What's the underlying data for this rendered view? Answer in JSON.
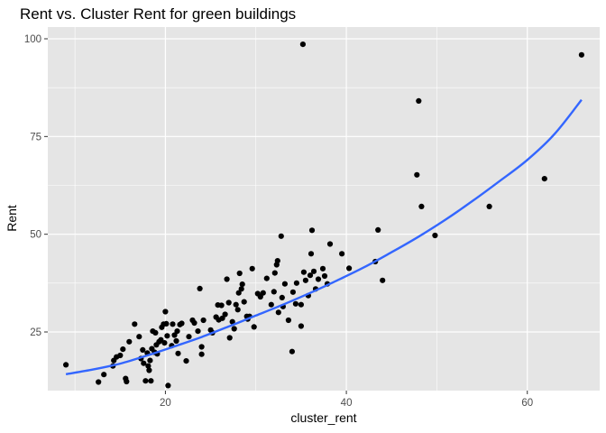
{
  "chart_data": {
    "type": "scatter",
    "title": "Rent vs. Cluster Rent for green buildings",
    "xlabel": "cluster_rent",
    "ylabel": "Rent",
    "xlim": [
      7,
      68
    ],
    "ylim": [
      10,
      103
    ],
    "x_ticks": [
      20,
      40,
      60
    ],
    "x_minor_ticks": [
      10,
      30,
      50
    ],
    "y_ticks": [
      25,
      50,
      75,
      100
    ],
    "y_minor_ticks": [
      37.5,
      62.5,
      87.5
    ],
    "x_tick_labels": [
      "20",
      "40",
      "60"
    ],
    "y_tick_labels": [
      "25",
      "50",
      "75",
      "100"
    ],
    "grid": true,
    "legend": "none",
    "panel_background": "#e5e5e5",
    "grid_color": "#ffffff",
    "point_color": "#000000",
    "trend_color": "#3366ff",
    "points": [
      [
        9.0,
        16.6
      ],
      [
        12.6,
        12.2
      ],
      [
        13.2,
        14.1
      ],
      [
        14.2,
        16.3
      ],
      [
        14.3,
        17.7
      ],
      [
        14.6,
        18.6
      ],
      [
        15.0,
        19.0
      ],
      [
        15.3,
        20.6
      ],
      [
        15.6,
        13.1
      ],
      [
        15.7,
        12.3
      ],
      [
        16.0,
        22.5
      ],
      [
        16.6,
        27.0
      ],
      [
        17.1,
        23.8
      ],
      [
        17.3,
        18.2
      ],
      [
        17.5,
        20.4
      ],
      [
        17.6,
        17.0
      ],
      [
        17.8,
        12.5
      ],
      [
        18.0,
        19.6
      ],
      [
        18.1,
        16.3
      ],
      [
        18.2,
        15.2
      ],
      [
        18.3,
        17.7
      ],
      [
        18.4,
        12.5
      ],
      [
        18.5,
        20.7
      ],
      [
        18.6,
        25.2
      ],
      [
        18.8,
        19.8
      ],
      [
        18.9,
        24.8
      ],
      [
        19.0,
        21.7
      ],
      [
        19.1,
        19.4
      ],
      [
        19.3,
        22.5
      ],
      [
        19.5,
        23.0
      ],
      [
        19.6,
        26.2
      ],
      [
        19.8,
        27.0
      ],
      [
        19.9,
        22.2
      ],
      [
        20.0,
        30.2
      ],
      [
        20.1,
        27.1
      ],
      [
        20.2,
        24.0
      ],
      [
        20.3,
        11.3
      ],
      [
        20.7,
        21.5
      ],
      [
        20.8,
        27.0
      ],
      [
        21.0,
        24.2
      ],
      [
        21.2,
        22.7
      ],
      [
        21.3,
        25.2
      ],
      [
        21.4,
        19.5
      ],
      [
        21.6,
        26.9
      ],
      [
        21.8,
        27.2
      ],
      [
        22.3,
        17.6
      ],
      [
        22.6,
        23.8
      ],
      [
        23.0,
        28.0
      ],
      [
        23.2,
        27.3
      ],
      [
        23.6,
        25.2
      ],
      [
        23.8,
        36.1
      ],
      [
        24.0,
        21.2
      ],
      [
        24.0,
        19.3
      ],
      [
        24.2,
        28.0
      ],
      [
        25.0,
        25.5
      ],
      [
        25.2,
        24.8
      ],
      [
        25.6,
        28.8
      ],
      [
        25.8,
        31.9
      ],
      [
        25.9,
        28.1
      ],
      [
        26.2,
        31.8
      ],
      [
        26.3,
        28.5
      ],
      [
        26.6,
        29.5
      ],
      [
        26.8,
        38.5
      ],
      [
        27.0,
        32.5
      ],
      [
        27.1,
        23.5
      ],
      [
        27.4,
        27.6
      ],
      [
        27.6,
        25.8
      ],
      [
        27.8,
        32.0
      ],
      [
        28.0,
        30.7
      ],
      [
        28.1,
        35.0
      ],
      [
        28.2,
        40.0
      ],
      [
        28.4,
        36.0
      ],
      [
        28.5,
        37.2
      ],
      [
        28.7,
        32.7
      ],
      [
        29.0,
        29.0
      ],
      [
        29.1,
        28.3
      ],
      [
        29.3,
        29.0
      ],
      [
        29.6,
        41.2
      ],
      [
        29.8,
        26.3
      ],
      [
        30.2,
        34.8
      ],
      [
        30.5,
        34.0
      ],
      [
        30.8,
        35.0
      ],
      [
        31.2,
        38.7
      ],
      [
        31.7,
        32.0
      ],
      [
        32.0,
        35.3
      ],
      [
        32.1,
        40.1
      ],
      [
        32.3,
        42.2
      ],
      [
        32.4,
        43.2
      ],
      [
        32.5,
        30.0
      ],
      [
        32.8,
        49.5
      ],
      [
        32.9,
        33.8
      ],
      [
        33.0,
        31.5
      ],
      [
        33.2,
        37.3
      ],
      [
        33.6,
        28.0
      ],
      [
        34.0,
        20.0
      ],
      [
        34.1,
        35.2
      ],
      [
        34.4,
        32.2
      ],
      [
        34.5,
        37.5
      ],
      [
        35.0,
        26.5
      ],
      [
        35.0,
        32.0
      ],
      [
        35.2,
        98.6
      ],
      [
        35.3,
        40.3
      ],
      [
        35.5,
        38.2
      ],
      [
        35.8,
        34.3
      ],
      [
        36.0,
        39.5
      ],
      [
        36.1,
        45.0
      ],
      [
        36.2,
        51.0
      ],
      [
        36.4,
        40.5
      ],
      [
        36.6,
        36.0
      ],
      [
        36.9,
        38.5
      ],
      [
        37.4,
        41.2
      ],
      [
        37.6,
        39.3
      ],
      [
        37.9,
        37.3
      ],
      [
        38.2,
        47.5
      ],
      [
        39.5,
        45.0
      ],
      [
        40.3,
        41.3
      ],
      [
        43.2,
        43.0
      ],
      [
        43.5,
        51.1
      ],
      [
        44.0,
        38.2
      ],
      [
        47.8,
        65.2
      ],
      [
        48.0,
        84.1
      ],
      [
        48.3,
        57.1
      ],
      [
        49.8,
        49.7
      ],
      [
        55.8,
        57.1
      ],
      [
        61.9,
        64.2
      ],
      [
        66.0,
        95.9
      ]
    ],
    "trend_line": {
      "x": [
        9,
        12,
        15,
        18,
        21,
        24,
        27,
        30,
        33,
        36,
        39,
        42,
        45,
        48,
        51,
        54,
        57,
        60,
        63,
        66
      ],
      "y": [
        14.2,
        15.4,
        16.9,
        19.0,
        21.3,
        23.7,
        26.4,
        29.2,
        32.0,
        35.0,
        38.2,
        41.6,
        45.4,
        49.4,
        53.8,
        58.6,
        63.7,
        69.0,
        75.6,
        84.4
      ]
    }
  }
}
